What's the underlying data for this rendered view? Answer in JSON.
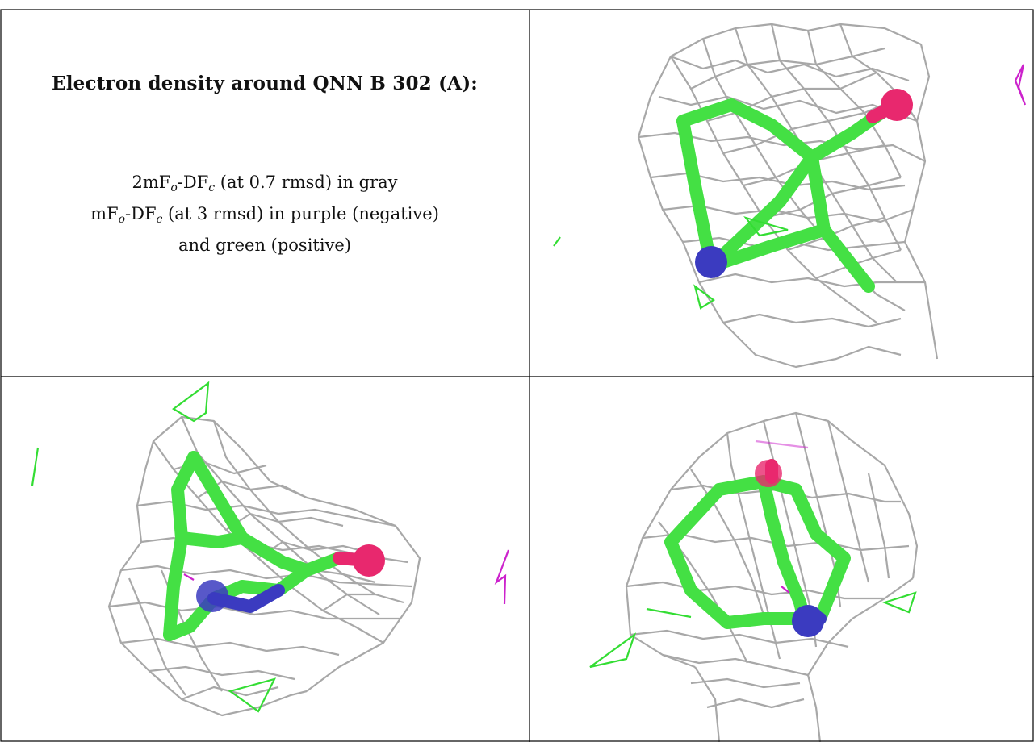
{
  "panel_text": {
    "title": "Electron density around QNN B 302 (A):",
    "line1": {
      "prefix": "2mF",
      "sub1": "o",
      "mid": "-DF",
      "sub2": "c",
      "suffix": " (at 0.7 rmsd) in gray"
    },
    "line2": {
      "prefix": "mF",
      "sub1": "o",
      "mid": "-DF",
      "sub2": "c",
      "suffix": " (at 3 rmsd) in purple (negative)"
    },
    "line3": "and green (positive)"
  },
  "colors": {
    "mesh": "#a8a8a8",
    "carbon": "#44e044",
    "nitrogen": "#3b3bc0",
    "oxygen": "#e8286e",
    "negative_density": "#cc22cc",
    "positive_density": "#33dd33"
  },
  "views": [
    {
      "name": "view-1",
      "ligand": "QNN"
    },
    {
      "name": "view-2",
      "ligand": "QNN"
    },
    {
      "name": "view-3",
      "ligand": "QNN"
    }
  ]
}
